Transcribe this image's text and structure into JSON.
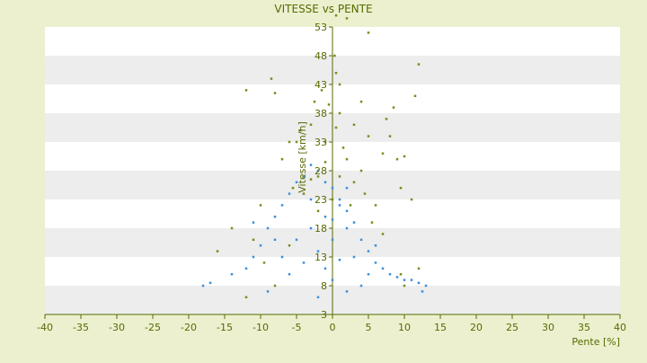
{
  "chart_data": {
    "type": "scatter",
    "title": "VITESSE vs PENTE",
    "xlabel": "Pente [%]",
    "ylabel": "Vitesse [km/h]",
    "xlim": [
      -40,
      40
    ],
    "ylim": [
      3,
      53
    ],
    "x_ticks": [
      -40,
      -35,
      -30,
      -25,
      -20,
      -15,
      -10,
      -5,
      0,
      5,
      10,
      15,
      20,
      25,
      30,
      35,
      40
    ],
    "y_ticks": [
      3,
      8,
      13,
      18,
      23,
      28,
      33,
      38,
      43,
      48,
      53
    ],
    "x_tick_labels": [
      "-40",
      "-35",
      "-30",
      "-25",
      "-20",
      "-15",
      "-10",
      "-5",
      "0",
      "5",
      "10",
      "15",
      "20",
      "25",
      "30",
      "35",
      "40"
    ],
    "y_tick_labels": [
      "3",
      "8",
      "13",
      "18",
      "23",
      "28",
      "33",
      "38",
      "43",
      "48",
      "53"
    ],
    "grid": "horizontal bands",
    "series": [
      {
        "color": "#7a8c1e",
        "values": [
          [
            -12.0,
            42.0
          ],
          [
            -8.0,
            41.5
          ],
          [
            -8.5,
            44.0
          ],
          [
            12.0,
            46.5
          ],
          [
            11.5,
            41.0
          ],
          [
            8.5,
            39.0
          ],
          [
            7.5,
            37.0
          ],
          [
            8.0,
            34.0
          ],
          [
            7.0,
            31.0
          ],
          [
            10.0,
            30.5
          ],
          [
            5.0,
            52.0
          ],
          [
            2.0,
            54.5
          ],
          [
            0.5,
            55.0
          ],
          [
            0.3,
            48.0
          ],
          [
            0.5,
            45.0
          ],
          [
            1.0,
            43.0
          ],
          [
            -1.5,
            42.0
          ],
          [
            -2.5,
            40.0
          ],
          [
            -3.0,
            36.0
          ],
          [
            -4.5,
            35.0
          ],
          [
            -5.0,
            33.0
          ],
          [
            3.0,
            36.0
          ],
          [
            5.0,
            34.0
          ],
          [
            4.0,
            40.0
          ],
          [
            -7.0,
            30.0
          ],
          [
            -6.0,
            33.0
          ],
          [
            -10.0,
            22.0
          ],
          [
            -14.0,
            18.0
          ],
          [
            -16.0,
            14.0
          ],
          [
            -9.5,
            12.0
          ],
          [
            -11.0,
            16.0
          ],
          [
            -12.0,
            6.0
          ],
          [
            -8.0,
            8.0
          ],
          [
            9.0,
            30.0
          ],
          [
            11.0,
            23.0
          ],
          [
            9.5,
            25.0
          ],
          [
            6.0,
            22.0
          ],
          [
            12.0,
            11.0
          ],
          [
            9.5,
            10.0
          ],
          [
            10.0,
            8.0
          ],
          [
            0.0,
            23.0
          ],
          [
            1.0,
            27.0
          ],
          [
            2.0,
            30.0
          ],
          [
            -1.0,
            29.5
          ],
          [
            -2.0,
            27.0
          ],
          [
            -3.0,
            26.5
          ],
          [
            3.0,
            26.0
          ],
          [
            4.0,
            28.0
          ],
          [
            -4.0,
            24.0
          ],
          [
            1.5,
            32.0
          ],
          [
            -1.0,
            33.0
          ],
          [
            0.5,
            35.5
          ],
          [
            1.0,
            38.0
          ],
          [
            -0.5,
            39.5
          ],
          [
            2.5,
            22.0
          ],
          [
            4.5,
            24.0
          ],
          [
            -5.5,
            25.0
          ],
          [
            -2.0,
            21.0
          ],
          [
            5.5,
            19.0
          ],
          [
            -6.0,
            15.0
          ],
          [
            7.0,
            17.0
          ]
        ]
      },
      {
        "color": "#3d8fd8",
        "values": [
          [
            -18.0,
            8.0
          ],
          [
            -17.0,
            8.5
          ],
          [
            -14.0,
            10.0
          ],
          [
            -12.0,
            11.0
          ],
          [
            -11.0,
            13.0
          ],
          [
            -10.0,
            15.0
          ],
          [
            -9.0,
            18.0
          ],
          [
            -8.0,
            20.0
          ],
          [
            -7.0,
            22.0
          ],
          [
            -6.0,
            24.0
          ],
          [
            -5.0,
            26.0
          ],
          [
            -4.0,
            27.0
          ],
          [
            -3.0,
            29.0
          ],
          [
            -2.0,
            28.0
          ],
          [
            -1.0,
            26.0
          ],
          [
            0.0,
            25.0
          ],
          [
            1.0,
            23.0
          ],
          [
            2.0,
            21.0
          ],
          [
            3.0,
            19.0
          ],
          [
            4.0,
            16.0
          ],
          [
            5.0,
            14.0
          ],
          [
            6.0,
            12.0
          ],
          [
            7.0,
            11.0
          ],
          [
            8.0,
            10.0
          ],
          [
            9.0,
            9.5
          ],
          [
            10.0,
            9.0
          ],
          [
            11.0,
            9.0
          ],
          [
            12.0,
            8.5
          ],
          [
            13.0,
            8.0
          ],
          [
            12.5,
            7.0
          ],
          [
            -9.0,
            7.0
          ],
          [
            -6.0,
            10.0
          ],
          [
            -4.0,
            12.0
          ],
          [
            -2.0,
            14.0
          ],
          [
            0.0,
            16.0
          ],
          [
            2.0,
            18.0
          ],
          [
            -1.0,
            20.0
          ],
          [
            1.0,
            22.0
          ],
          [
            -3.0,
            18.0
          ],
          [
            3.0,
            13.0
          ],
          [
            5.0,
            10.0
          ],
          [
            -5.0,
            16.0
          ],
          [
            -7.0,
            13.0
          ],
          [
            4.0,
            8.0
          ],
          [
            2.0,
            7.0
          ],
          [
            -2.0,
            6.0
          ],
          [
            0.0,
            9.0
          ],
          [
            -1.0,
            11.0
          ],
          [
            1.0,
            12.5
          ],
          [
            6.0,
            15.0
          ],
          [
            -8.0,
            16.0
          ],
          [
            -11.0,
            19.0
          ],
          [
            0.0,
            19.5
          ],
          [
            -3.0,
            23.0
          ],
          [
            2.0,
            25.0
          ]
        ]
      }
    ]
  }
}
